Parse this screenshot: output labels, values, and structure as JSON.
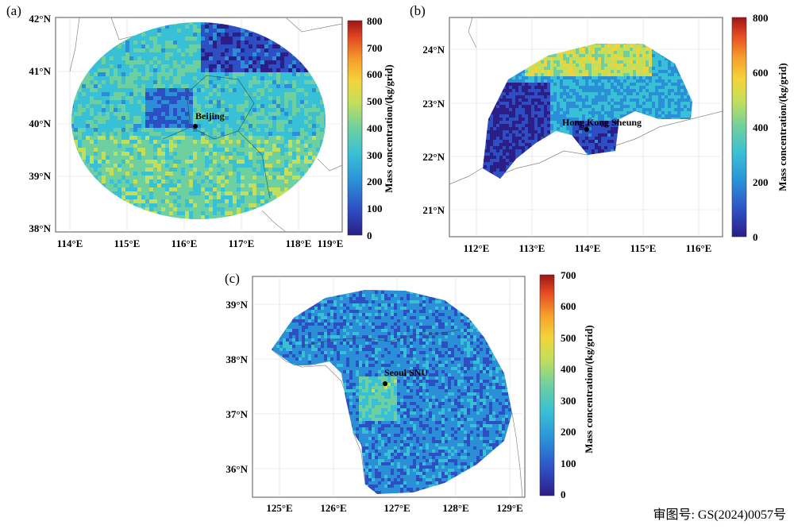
{
  "panels": [
    {
      "label": "(a)",
      "place": "Beijing",
      "lat_ticks": [
        "42°N",
        "41°N",
        "40°N",
        "39°N",
        "38°N"
      ],
      "lon_ticks": [
        "114°E",
        "115°E",
        "116°E",
        "117°E",
        "118°E",
        "119°E"
      ],
      "colorbar": {
        "ticks": [
          "800",
          "700",
          "600",
          "500",
          "400",
          "300",
          "200",
          "100",
          "0"
        ],
        "max": 800,
        "label": "Mass concentration/(kg/grid)"
      }
    },
    {
      "label": "(b)",
      "place": "Hong Kong Sheung",
      "lat_ticks": [
        "24°N",
        "23°N",
        "22°N",
        "21°N"
      ],
      "lon_ticks": [
        "112°E",
        "113°E",
        "114°E",
        "115°E",
        "116°E"
      ],
      "colorbar": {
        "ticks": [
          "800",
          "600",
          "400",
          "200",
          "0"
        ],
        "max": 800,
        "label": "Mass concentration/(kg/grid)"
      }
    },
    {
      "label": "(c)",
      "place": "Seoul SNU",
      "lat_ticks": [
        "39°N",
        "38°N",
        "37°N",
        "36°N"
      ],
      "lon_ticks": [
        "125°E",
        "126°E",
        "127°E",
        "128°E",
        "129°E"
      ],
      "colorbar": {
        "ticks": [
          "700",
          "600",
          "500",
          "400",
          "300",
          "200",
          "100",
          "0"
        ],
        "max": 700,
        "label": "Mass concentration/(kg/grid)"
      }
    }
  ],
  "colormap": [
    "#2b1e86",
    "#2e4fc4",
    "#2b8fd8",
    "#38c0d6",
    "#6ed0a0",
    "#c3df5a",
    "#f4d33a",
    "#f69d2b",
    "#e34a22",
    "#9e1515"
  ],
  "approval_number": "审图号: GS(2024)0057号"
}
